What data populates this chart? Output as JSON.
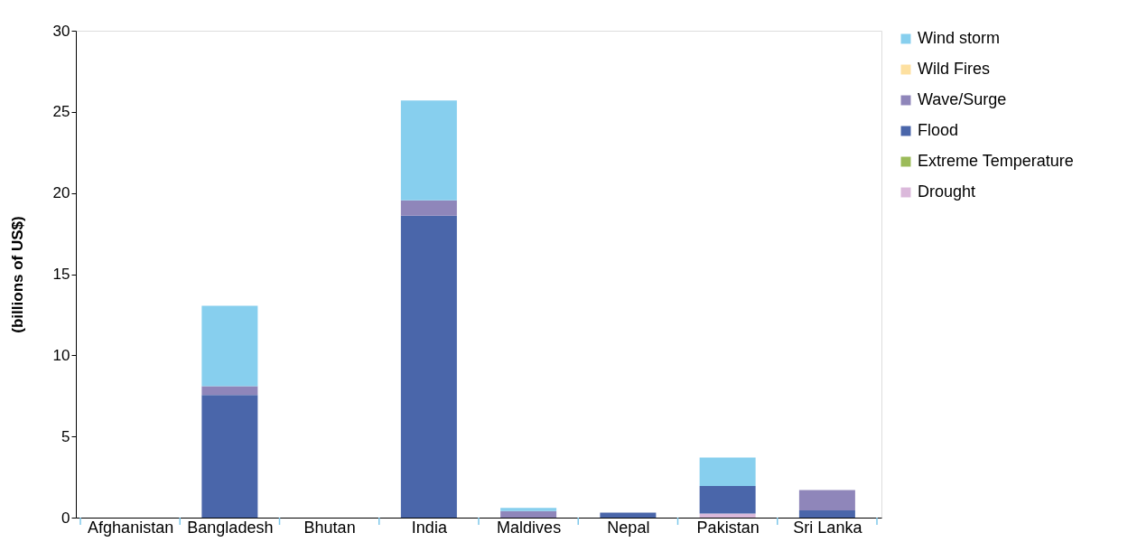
{
  "chart_data": {
    "type": "bar",
    "stacked": true,
    "ylabel": "(billions of US$)",
    "categories": [
      "Afghanistan",
      "Bangladesh",
      "Bhutan",
      "India",
      "Maldives",
      "Nepal",
      "Pakistan",
      "Sri Lanka"
    ],
    "series": [
      {
        "name": "Drought",
        "color": "#dbb9db",
        "values": [
          null,
          null,
          null,
          null,
          null,
          null,
          0.25,
          null
        ]
      },
      {
        "name": "Extreme Temperature",
        "color": "#9bbb59",
        "values": [
          null,
          null,
          null,
          null,
          null,
          null,
          null,
          null
        ]
      },
      {
        "name": "Flood",
        "color": "#4a66aa",
        "values": [
          null,
          7.55,
          null,
          18.6,
          null,
          0.3,
          1.7,
          0.45
        ]
      },
      {
        "name": "Wave/Surge",
        "color": "#8f86ba",
        "values": [
          null,
          0.55,
          null,
          0.95,
          0.4,
          null,
          null,
          1.25
        ]
      },
      {
        "name": "Wild Fires",
        "color": "#fde0a0",
        "values": [
          null,
          null,
          null,
          null,
          null,
          null,
          null,
          null
        ]
      },
      {
        "name": "Wind storm",
        "color": "#87cfee",
        "values": [
          null,
          4.95,
          null,
          6.15,
          0.2,
          null,
          1.75,
          null
        ]
      }
    ],
    "ylim": [
      0,
      30
    ],
    "yticks": [
      0,
      5,
      10,
      15,
      20,
      25,
      30
    ],
    "grid": false,
    "legend": "right"
  }
}
